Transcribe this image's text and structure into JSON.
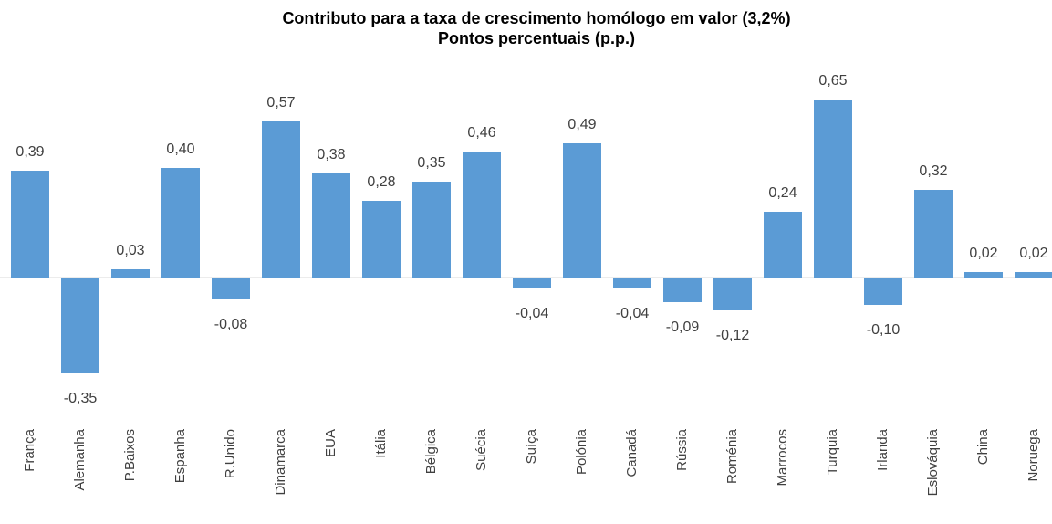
{
  "chart_data": {
    "type": "bar",
    "title": "Contributo para a taxa de crescimento homólogo em valor (3,2%)",
    "subtitle": "Pontos percentuais (p.p.)",
    "categories": [
      "França",
      "Alemanha",
      "P.Baixos",
      "Espanha",
      "R.Unido",
      "Dinamarca",
      "EUA",
      "Itália",
      "Bélgica",
      "Suécia",
      "Suíça",
      "Polónia",
      "Canadá",
      "Rússia",
      "Roménia",
      "Marrocos",
      "Turquia",
      "Irlanda",
      "Eslováquia",
      "China",
      "Noruega"
    ],
    "values": [
      0.39,
      -0.35,
      0.03,
      0.4,
      -0.08,
      0.57,
      0.38,
      0.28,
      0.35,
      0.46,
      -0.04,
      0.49,
      -0.04,
      -0.09,
      -0.12,
      0.24,
      0.65,
      -0.1,
      0.32,
      0.02,
      0.02
    ],
    "value_labels": [
      "0,39",
      "-0,35",
      "0,03",
      "0,40",
      "-0,08",
      "0,57",
      "0,38",
      "0,28",
      "0,35",
      "0,46",
      "-0,04",
      "0,49",
      "-0,04",
      "-0,09",
      "-0,12",
      "0,24",
      "0,65",
      "-0,10",
      "0,32",
      "0,02",
      "0,02"
    ],
    "color": "#5b9bd5"
  }
}
